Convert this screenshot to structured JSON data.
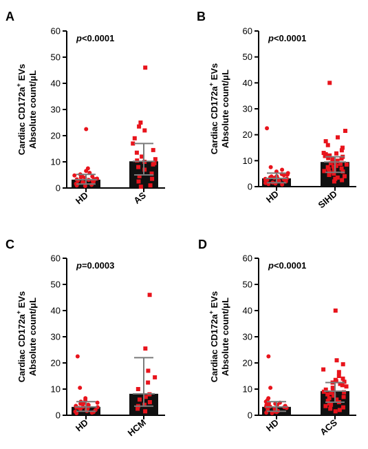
{
  "chart_data": [
    {
      "type": "bar",
      "panel": "A",
      "pvalue_prefix": "p",
      "pvalue_rest": "<0.0001",
      "ylabel_line1": "Cardiac CD172a",
      "ylabel_sup": "+",
      "ylabel_line1_end": " EVs",
      "ylabel_line2": "Absolute count/μL",
      "ylim": [
        0,
        60
      ],
      "yticks": [
        "0",
        "10",
        "20",
        "30",
        "40",
        "50",
        "60"
      ],
      "categories": [
        "HD",
        "AS"
      ],
      "bars": [
        {
          "median": 3.2,
          "iqr": [
            1.5,
            5.2
          ]
        },
        {
          "median": 10.2,
          "iqr": [
            5.0,
            17.0
          ]
        }
      ],
      "points": [
        [
          1.2,
          1.6,
          2.0,
          2.4,
          2.8,
          3.0,
          3.3,
          3.6,
          4.0,
          4.4,
          4.8,
          5.2,
          5.8,
          6.5,
          1.0,
          2.2,
          3.1,
          3.9,
          0.8,
          1.4,
          2.6,
          3.4,
          4.6,
          22.5,
          7.5
        ],
        [
          46.0,
          25.0,
          23.5,
          22.0,
          19.0,
          17.0,
          14.5,
          13.5,
          12.0,
          11.0,
          10.5,
          10.0,
          9.5,
          9.0,
          8.0,
          7.0,
          5.5,
          4.5,
          3.5,
          2.5,
          1.0,
          0.5
        ]
      ]
    },
    {
      "type": "bar",
      "panel": "B",
      "pvalue_prefix": "p",
      "pvalue_rest": "<0.0001",
      "ylabel_line1": "Cardiac CD172a",
      "ylabel_sup": "+",
      "ylabel_line1_end": " EVs",
      "ylabel_line2": "Absolute count/μL",
      "ylim": [
        0,
        60
      ],
      "yticks": [
        "0",
        "10",
        "20",
        "30",
        "40",
        "50",
        "60"
      ],
      "categories": [
        "HD",
        "SIHD"
      ],
      "bars": [
        {
          "median": 3.2,
          "iqr": [
            1.5,
            5.2
          ]
        },
        {
          "median": 9.5,
          "iqr": [
            5.5,
            11.5
          ]
        }
      ],
      "points": [
        [
          1.2,
          1.6,
          2.0,
          2.4,
          2.8,
          3.0,
          3.3,
          3.6,
          4.0,
          4.4,
          4.8,
          5.2,
          5.8,
          6.5,
          1.0,
          2.2,
          3.1,
          3.9,
          0.8,
          1.4,
          2.6,
          3.4,
          4.6,
          22.5,
          7.5
        ],
        [
          40.0,
          21.5,
          19.0,
          17.5,
          16.0,
          15.0,
          14.0,
          13.0,
          12.5,
          12.0,
          11.5,
          11.0,
          10.5,
          10.0,
          9.5,
          9.0,
          8.5,
          8.0,
          7.5,
          7.0,
          6.5,
          6.0,
          5.5,
          5.0,
          4.5,
          4.0,
          3.5,
          3.0,
          2.5,
          2.0,
          9.8,
          8.8,
          7.8,
          6.8,
          5.8,
          10.8,
          11.8,
          12.8
        ]
      ]
    },
    {
      "type": "bar",
      "panel": "C",
      "pvalue_prefix": "p",
      "pvalue_rest": "=0.0003",
      "ylabel_line1": "Cardiac CD172a",
      "ylabel_sup": "+",
      "ylabel_line1_end": " EVs",
      "ylabel_line2": "Absolute count/μL",
      "ylim": [
        0,
        60
      ],
      "yticks": [
        "0",
        "10",
        "20",
        "30",
        "40",
        "50",
        "60"
      ],
      "categories": [
        "HD",
        "HCM"
      ],
      "bars": [
        {
          "median": 3.2,
          "iqr": [
            1.5,
            5.2
          ]
        },
        {
          "median": 8.2,
          "iqr": [
            3.5,
            22.0
          ]
        }
      ],
      "points": [
        [
          1.2,
          1.6,
          2.0,
          2.4,
          2.8,
          3.0,
          3.3,
          3.6,
          4.0,
          4.4,
          4.8,
          5.2,
          5.8,
          6.5,
          1.0,
          2.2,
          3.1,
          3.9,
          0.8,
          1.4,
          2.6,
          3.4,
          4.6,
          22.5,
          10.5
        ],
        [
          46.0,
          25.5,
          17.0,
          14.5,
          12.5,
          10.0,
          8.0,
          7.0,
          6.0,
          5.0,
          4.0,
          3.5,
          2.5,
          1.5
        ]
      ]
    },
    {
      "type": "bar",
      "panel": "D",
      "pvalue_prefix": "p",
      "pvalue_rest": "<0.0001",
      "ylabel_line1": "Cardiac CD172a",
      "ylabel_sup": "+",
      "ylabel_line1_end": " EVs",
      "ylabel_line2": "Absolute count/μL",
      "ylim": [
        0,
        60
      ],
      "yticks": [
        "0",
        "10",
        "20",
        "30",
        "40",
        "50",
        "60"
      ],
      "categories": [
        "HD",
        "ACS"
      ],
      "bars": [
        {
          "median": 3.2,
          "iqr": [
            1.5,
            5.2
          ]
        },
        {
          "median": 9.2,
          "iqr": [
            5.0,
            12.5
          ]
        }
      ],
      "points": [
        [
          1.2,
          1.6,
          2.0,
          2.4,
          2.8,
          3.0,
          3.3,
          3.6,
          4.0,
          4.4,
          4.8,
          5.2,
          5.8,
          6.5,
          1.0,
          2.2,
          3.1,
          3.9,
          0.8,
          1.4,
          2.6,
          3.4,
          4.6,
          22.5,
          10.5
        ],
        [
          40.0,
          21.0,
          19.5,
          17.5,
          16.5,
          15.0,
          14.0,
          13.0,
          12.5,
          12.0,
          11.0,
          10.5,
          10.0,
          9.5,
          9.0,
          8.5,
          8.0,
          7.5,
          7.0,
          6.5,
          6.0,
          5.5,
          5.0,
          4.5,
          4.0,
          3.5,
          3.0,
          2.5,
          2.0,
          1.5,
          9.8,
          8.8,
          7.8,
          11.5,
          12.8,
          13.5
        ]
      ]
    }
  ],
  "colors": {
    "bar_fill": "#111111",
    "points": "#e8141c",
    "error_bar": "#7a7a7a",
    "axis": "#000000"
  }
}
